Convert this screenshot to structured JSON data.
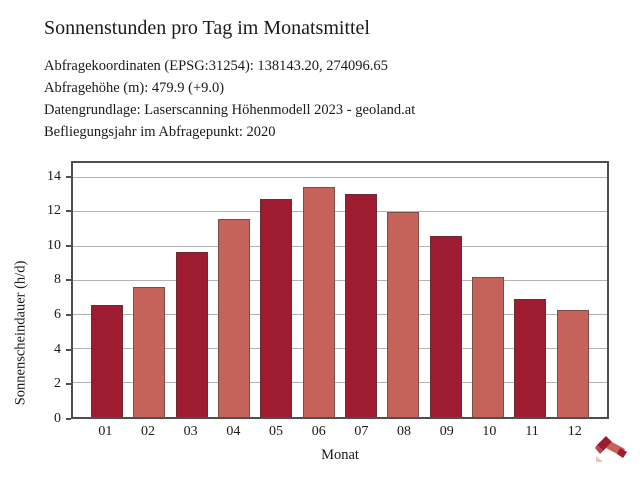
{
  "header": {
    "title": "Sonnenstunden pro Tag im Monatsmittel",
    "info_lines": [
      "Abfragekoordinaten (EPSG:31254): 138143.20, 274096.65",
      "Abfragehöhe (m): 479.9 (+9.0)",
      "Datengrundlage: Laserscanning Höhenmodell 2023 - geoland.at",
      "Befliegungsjahr im Abfragepunkt: 2020"
    ]
  },
  "chart_data": {
    "type": "bar",
    "title": "Sonnenstunden pro Tag im Monatsmittel",
    "categories": [
      "01",
      "02",
      "03",
      "04",
      "05",
      "06",
      "07",
      "08",
      "09",
      "10",
      "11",
      "12"
    ],
    "values": [
      6.6,
      7.6,
      9.7,
      11.6,
      12.8,
      13.5,
      13.1,
      12.0,
      10.6,
      8.2,
      6.9,
      6.3
    ],
    "xlabel": "Monat",
    "ylabel": "Sonnenscheindauer (h/d)",
    "ylim": [
      0,
      14.9
    ],
    "yticks": [
      0,
      2,
      4,
      6,
      8,
      10,
      12,
      14
    ],
    "grid": true,
    "legend": "none",
    "colors": {
      "bar_dark": "#9f1b30",
      "bar_light": "#c5635a",
      "grid": "#b3b3b3",
      "axis": "#4f4f4f"
    }
  },
  "logo": {
    "name": "geoland-ribbon-logo",
    "colors": {
      "dark": "#9f1b30",
      "mid": "#b2454f",
      "light": "#c5635a",
      "pale": "#e6c3c0"
    }
  }
}
